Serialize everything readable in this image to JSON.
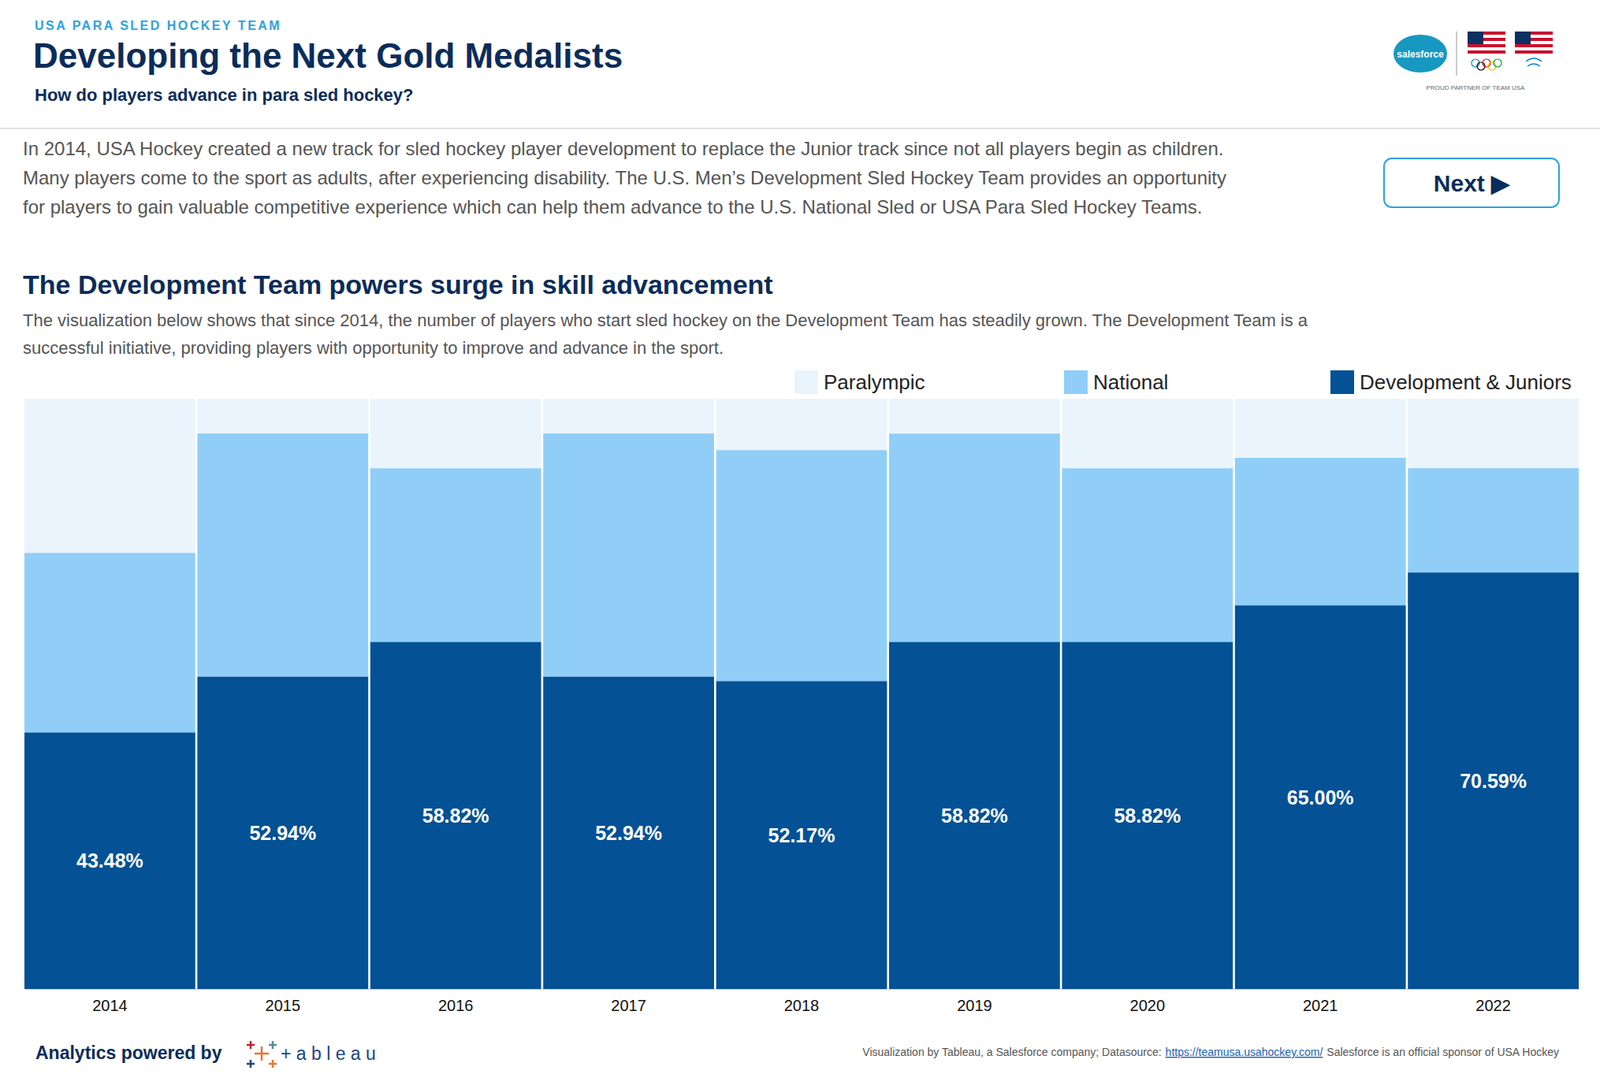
{
  "header": {
    "kicker": "USA PARA SLED HOCKEY TEAM",
    "title": "Developing the Next Gold Medalists",
    "subtitle": "How do players advance in para sled hockey?",
    "logo_text": "salesforce",
    "partner_text": "PROUD PARTNER OF TEAM USA"
  },
  "intro": {
    "lines": [
      "In 2014, USA Hockey created a new track for sled hockey player development to replace the Junior track since not all players begin as children.",
      "Many players come to the sport as adults, after experiencing disability. The U.S. Men’s Development Sled Hockey Team provides an opportunity",
      "for players to gain valuable competitive experience which can help them advance to the U.S. National Sled or USA Para Sled Hockey Teams."
    ],
    "button": "Next ▶"
  },
  "footer": {
    "powered_by": "Analytics powered by",
    "brand": "+ a b l e a u",
    "credit": "Visualization by Tableau, a Salesforce company; Datasource:",
    "link": "https://teamusa.usahockey.com/",
    "sponsor": "Salesforce is an official sponsor of USA Hockey"
  },
  "chart_data": {
    "type": "bar",
    "stacked": true,
    "data_labels": true,
    "tick_labels": "x",
    "title": "The Development Team powers surge in skill advancement",
    "subtitle": [
      "The visualization below shows that since 2014, the number of players who start sled hockey on the Development Team has steadily grown. The Development Team is a",
      "successful initiative, providing players with opportunity to improve and advance in the sport."
    ],
    "categories": [
      "2014",
      "2015",
      "2016",
      "2017",
      "2018",
      "2019",
      "2020",
      "2021",
      "2022"
    ],
    "ylim": [
      0,
      100
    ],
    "series": [
      {
        "name": "Paralympic",
        "color": "#eaf4fc",
        "values": [
          26.09,
          5.88,
          11.76,
          5.88,
          8.7,
          5.88,
          11.76,
          10.0,
          11.76
        ]
      },
      {
        "name": "National",
        "color": "#90cef8",
        "values": [
          30.43,
          41.18,
          29.41,
          41.18,
          39.13,
          35.29,
          29.41,
          25.0,
          17.65
        ]
      },
      {
        "name": "Development & Juniors",
        "color": "#045195",
        "values": [
          43.48,
          52.94,
          58.82,
          52.94,
          52.17,
          58.82,
          58.82,
          65.0,
          70.59
        ],
        "value_labels": [
          "43.48%",
          "52.94%",
          "58.82%",
          "52.94%",
          "52.17%",
          "58.82%",
          "58.82%",
          "65.00%",
          "70.59%"
        ]
      }
    ]
  }
}
